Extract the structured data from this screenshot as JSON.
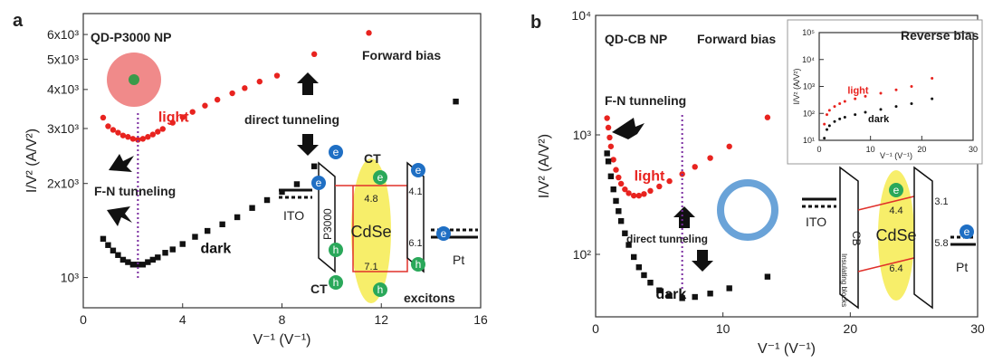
{
  "chart_data": [
    {
      "type": "scatter",
      "panel_label": "a",
      "x_label": "V⁻¹ (V⁻¹)",
      "y_label": "I/V² (A/V²)",
      "yscale": "log",
      "xlim": [
        0,
        16
      ],
      "xticks": [
        0,
        4,
        8,
        12,
        16
      ],
      "ylim": [
        800,
        7000
      ],
      "yticks": [
        {
          "value": 1000,
          "label": "10³"
        },
        {
          "value": 2000,
          "label": "2x10³"
        },
        {
          "value": 3000,
          "label": "3x10³"
        },
        {
          "value": 4000,
          "label": "4x10³"
        },
        {
          "value": 5000,
          "label": "5x10³"
        },
        {
          "value": 6000,
          "label": "6x10³"
        }
      ],
      "series": [
        {
          "name": "light",
          "color": "#e8231f",
          "marker": "circle",
          "x": [
            0.8,
            1.0,
            1.2,
            1.4,
            1.6,
            1.8,
            2.0,
            2.2,
            2.4,
            2.6,
            2.8,
            3.0,
            3.2,
            3.6,
            4.0,
            4.4,
            4.9,
            5.4,
            6.0,
            6.5,
            7.1,
            7.8,
            9.3,
            11.5
          ],
          "values": [
            3250,
            3050,
            2970,
            2910,
            2850,
            2820,
            2780,
            2760,
            2780,
            2820,
            2870,
            2930,
            2990,
            3130,
            3260,
            3390,
            3550,
            3710,
            3890,
            4040,
            4240,
            4430,
            5190,
            6070
          ]
        },
        {
          "name": "dark",
          "color": "#111111",
          "marker": "square",
          "x": [
            0.8,
            1.0,
            1.2,
            1.4,
            1.6,
            1.8,
            2.0,
            2.2,
            2.4,
            2.6,
            2.8,
            3.0,
            3.3,
            3.6,
            4.0,
            4.5,
            5.0,
            5.6,
            6.2,
            6.8,
            7.4,
            8.0,
            8.6,
            9.3,
            15.0
          ],
          "values": [
            1330,
            1270,
            1220,
            1180,
            1140,
            1120,
            1100,
            1100,
            1100,
            1120,
            1140,
            1160,
            1200,
            1230,
            1280,
            1350,
            1410,
            1480,
            1560,
            1670,
            1770,
            1880,
            1990,
            2270,
            3660
          ]
        }
      ],
      "annotations": [
        "QD-P3000 NP",
        "Forward bias",
        "direct tunneling",
        "F-N tunneling",
        "ITO",
        "P3000",
        "CdSe",
        "4.8",
        "7.1",
        "4.1",
        "6.1",
        "Pt",
        "CT",
        "excitons",
        "e",
        "h"
      ]
    },
    {
      "type": "scatter",
      "panel_label": "b",
      "x_label": "V⁻¹ (V⁻¹)",
      "y_label": "I/V² (A/V²)",
      "yscale": "log",
      "xlim": [
        0,
        30
      ],
      "xticks": [
        0,
        10,
        20,
        30
      ],
      "ylim": [
        30,
        10000
      ],
      "yticks": [
        {
          "value": 100,
          "label": "10²"
        },
        {
          "value": 1000,
          "label": "10³"
        },
        {
          "value": 10000,
          "label": "10⁴"
        }
      ],
      "series": [
        {
          "name": "light",
          "color": "#e8231f",
          "marker": "circle",
          "x": [
            0.9,
            1.0,
            1.1,
            1.2,
            1.4,
            1.6,
            1.8,
            2.0,
            2.3,
            2.6,
            3.0,
            3.4,
            3.8,
            4.3,
            5.0,
            5.8,
            6.8,
            7.8,
            9.0,
            10.5,
            13.5
          ],
          "values": [
            1380,
            1150,
            950,
            800,
            620,
            510,
            440,
            390,
            350,
            325,
            310,
            310,
            320,
            340,
            370,
            410,
            470,
            540,
            640,
            800,
            1400
          ]
        },
        {
          "name": "dark",
          "color": "#111111",
          "marker": "square",
          "x": [
            0.9,
            1.0,
            1.2,
            1.4,
            1.6,
            1.8,
            2.0,
            2.3,
            2.6,
            3.0,
            3.4,
            3.8,
            4.3,
            5.0,
            5.8,
            6.8,
            7.8,
            9.0,
            10.5,
            13.5
          ],
          "values": [
            700,
            600,
            450,
            350,
            280,
            230,
            190,
            150,
            120,
            95,
            78,
            67,
            58,
            50,
            45,
            43,
            44,
            47,
            52,
            65
          ]
        }
      ],
      "annotations": [
        "QD-CB NP",
        "Forward bias",
        "F-N tunneling",
        "direct tunneling",
        "ITO",
        "CB",
        "Insulating blocks",
        "CdSe",
        "4.4",
        "6.4",
        "3.1",
        "5.8",
        "Pt",
        "e"
      ]
    },
    {
      "type": "scatter",
      "inset": true,
      "x_label": "V⁻¹ (V⁻¹)",
      "y_label": "I/V² (A/V²)",
      "yscale": "log",
      "xlim": [
        0,
        30
      ],
      "xticks": [
        0,
        10,
        20,
        30
      ],
      "ylim": [
        10,
        100000
      ],
      "yticks": [
        {
          "value": 10,
          "label": "10¹"
        },
        {
          "value": 100,
          "label": "10²"
        },
        {
          "value": 1000,
          "label": "10³"
        },
        {
          "value": 10000,
          "label": "10⁴"
        },
        {
          "value": 100000,
          "label": "10⁵"
        }
      ],
      "series": [
        {
          "name": "light",
          "color": "#e8231f",
          "marker": "circle",
          "x": [
            1,
            1.5,
            2,
            3,
            4,
            5,
            7,
            9,
            12,
            15,
            18,
            22
          ],
          "values": [
            40,
            90,
            130,
            180,
            230,
            280,
            350,
            430,
            560,
            750,
            1000,
            2000
          ]
        },
        {
          "name": "dark",
          "color": "#111111",
          "marker": "circle",
          "x": [
            1,
            1.5,
            2,
            3,
            4,
            5,
            7,
            9,
            12,
            15,
            18,
            22
          ],
          "values": [
            12,
            25,
            35,
            50,
            62,
            72,
            90,
            110,
            140,
            180,
            230,
            350
          ]
        }
      ],
      "annotations": [
        "Reverse bias"
      ]
    }
  ]
}
